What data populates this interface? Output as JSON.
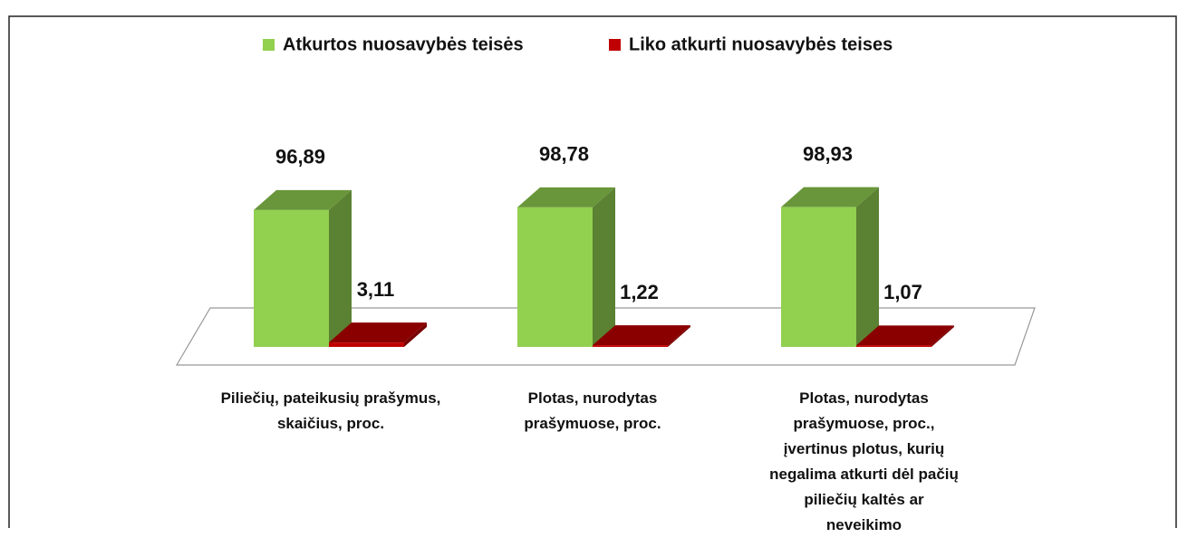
{
  "chart_data": {
    "type": "bar3d",
    "categories": [
      "Piliečių, pateikusių prašymus, skaičius, proc.",
      "Plotas, nurodytas prašymuose, proc.",
      "Plotas, nurodytas prašymuose, proc., įvertinus plotus, kurių negalima atkurti dėl pačių piliečių kaltės ar neveikimo"
    ],
    "series": [
      {
        "name": "Atkurtos nuosavybės teisės",
        "color": "#92d050",
        "values": [
          96.89,
          98.78,
          98.93
        ],
        "value_labels": [
          "96,89",
          "98,78",
          "98,93"
        ]
      },
      {
        "name": "Liko atkurti nuosavybės teises",
        "color": "#c00000",
        "values": [
          3.11,
          1.22,
          1.07
        ],
        "value_labels": [
          "3,11",
          "1,22",
          "1,07"
        ]
      }
    ],
    "legend": "top"
  }
}
